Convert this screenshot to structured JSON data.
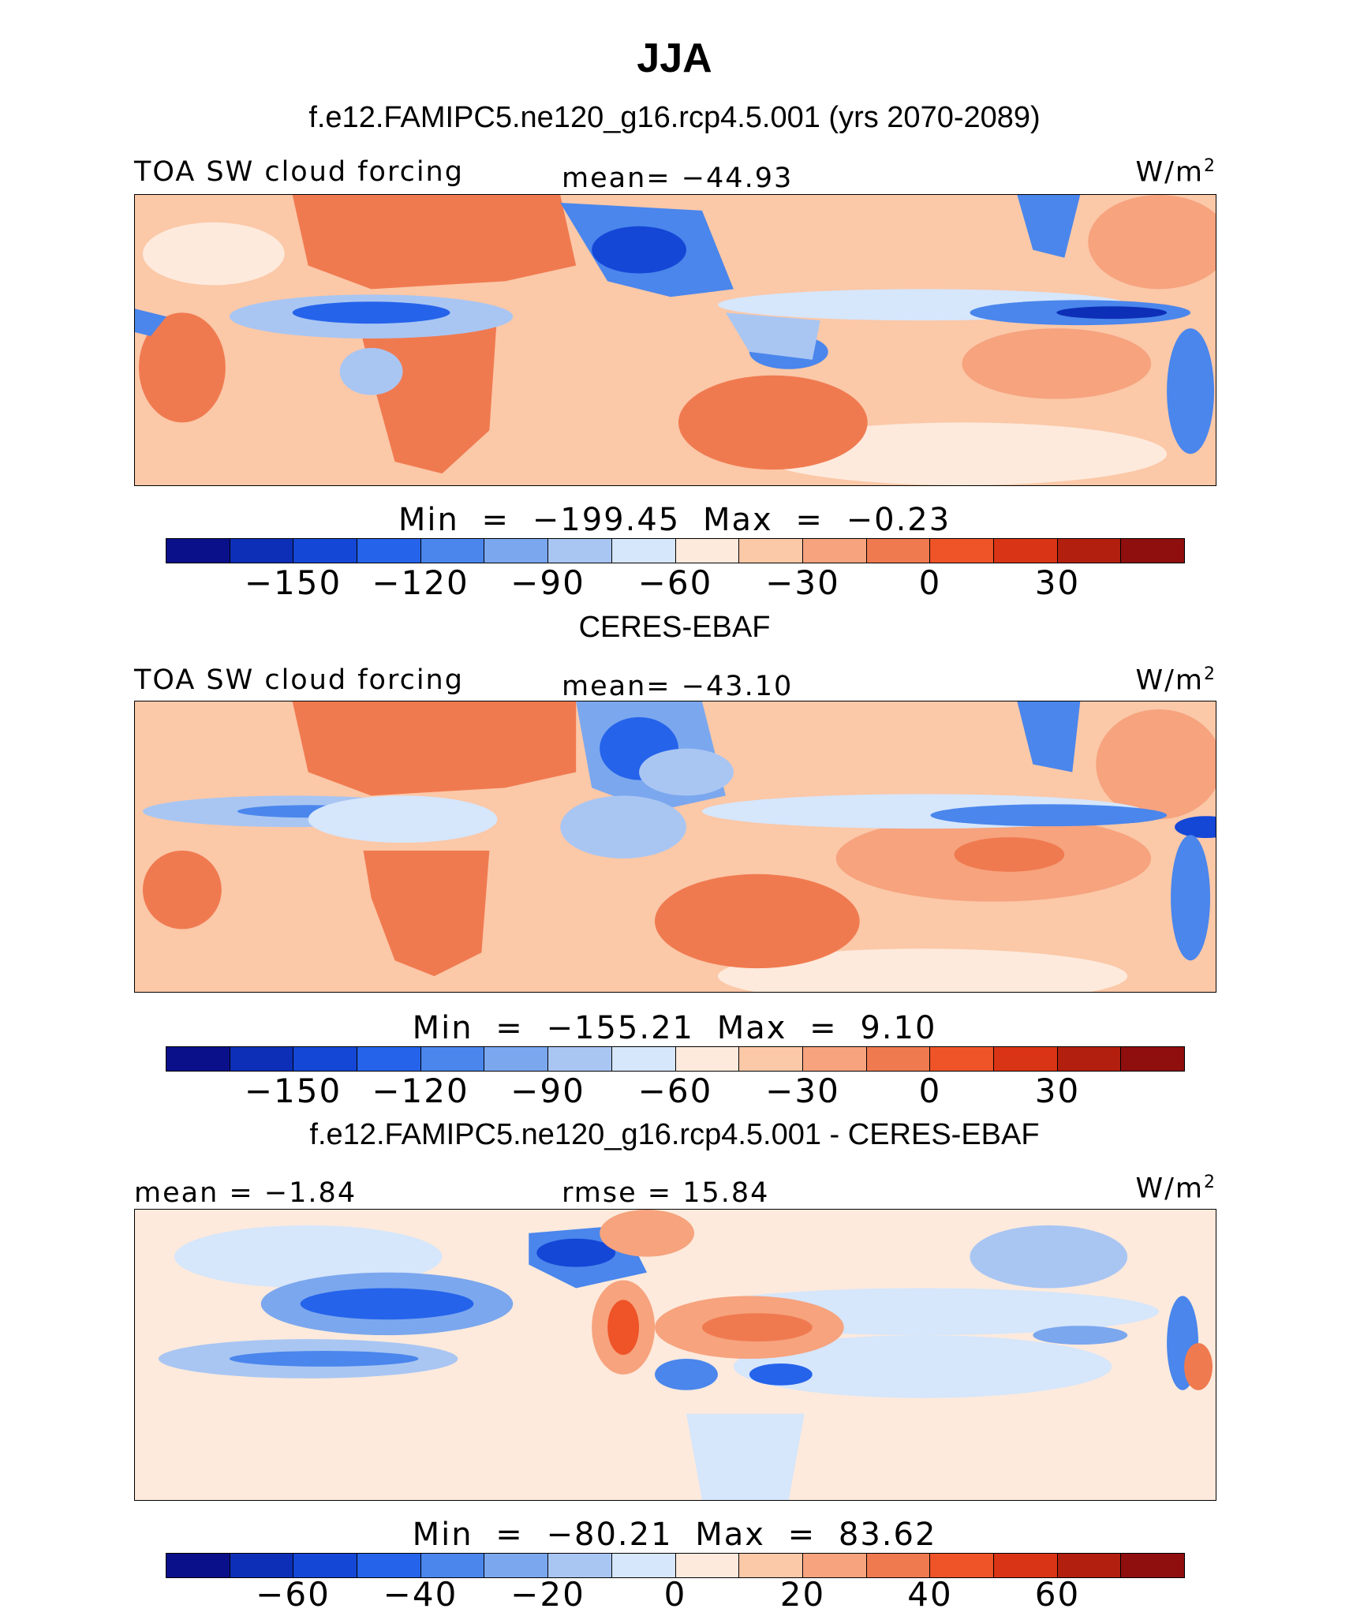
{
  "title": "JJA",
  "colors": {
    "blue_dark": "#0a1fa8",
    "blue_mid": "#3a6fe0",
    "blue_light": "#d6e6fb",
    "peach": "#fbd7c0",
    "orange": "#f2855c",
    "red_dark": "#8f0e0e"
  },
  "panel1": {
    "header": "f.e12.FAMIPC5.ne120_g16.rcp4.5.001 (yrs 2070-2089)",
    "variable": "TOA SW cloud forcing",
    "mean_text": "mean= −44.93",
    "units": "W/m",
    "units_exp": "2",
    "min_label": "Min",
    "min_value": "−199.45",
    "max_label": "Max",
    "max_value": "−0.23",
    "colorbar": {
      "colors": [
        "#0a0f8a",
        "#0d2fb8",
        "#1447d6",
        "#2563ea",
        "#4a86ec",
        "#7ba7ee",
        "#a9c6f3",
        "#d6e6fb",
        "#fdeadc",
        "#fbc8a8",
        "#f6a37e",
        "#f07a50",
        "#ee5428",
        "#d93415",
        "#b21f0e",
        "#8f0e0e"
      ],
      "tick_labels": [
        "−150",
        "−120",
        "−90",
        "−60",
        "−30",
        "0",
        "30"
      ]
    }
  },
  "panel2": {
    "header": "CERES-EBAF",
    "variable": "TOA SW cloud forcing",
    "mean_text": "mean= −43.10",
    "units": "W/m",
    "units_exp": "2",
    "min_label": "Min",
    "min_value": "−155.21",
    "max_label": "Max",
    "max_value": "9.10",
    "colorbar": {
      "colors": [
        "#0a0f8a",
        "#0d2fb8",
        "#1447d6",
        "#2563ea",
        "#4a86ec",
        "#7ba7ee",
        "#a9c6f3",
        "#d6e6fb",
        "#fdeadc",
        "#fbc8a8",
        "#f6a37e",
        "#f07a50",
        "#ee5428",
        "#d93415",
        "#b21f0e",
        "#8f0e0e"
      ],
      "tick_labels": [
        "−150",
        "−120",
        "−90",
        "−60",
        "−30",
        "0",
        "30"
      ]
    }
  },
  "panel3": {
    "header": "f.e12.FAMIPC5.ne120_g16.rcp4.5.001 - CERES-EBAF",
    "mean_text": "mean =  −1.84",
    "rmse_text": "rmse =  15.84",
    "units": "W/m",
    "units_exp": "2",
    "min_label": "Min",
    "min_value": "−80.21",
    "max_label": "Max",
    "max_value": "83.62",
    "colorbar": {
      "colors": [
        "#0a0f8a",
        "#0d2fb8",
        "#1447d6",
        "#2563ea",
        "#4a86ec",
        "#7ba7ee",
        "#a9c6f3",
        "#d6e6fb",
        "#fdeadc",
        "#fbc8a8",
        "#f6a37e",
        "#f07a50",
        "#ee5428",
        "#d93415",
        "#b21f0e",
        "#8f0e0e"
      ],
      "tick_labels": [
        "−60",
        "−40",
        "−20",
        "0",
        "20",
        "40",
        "60"
      ]
    }
  }
}
